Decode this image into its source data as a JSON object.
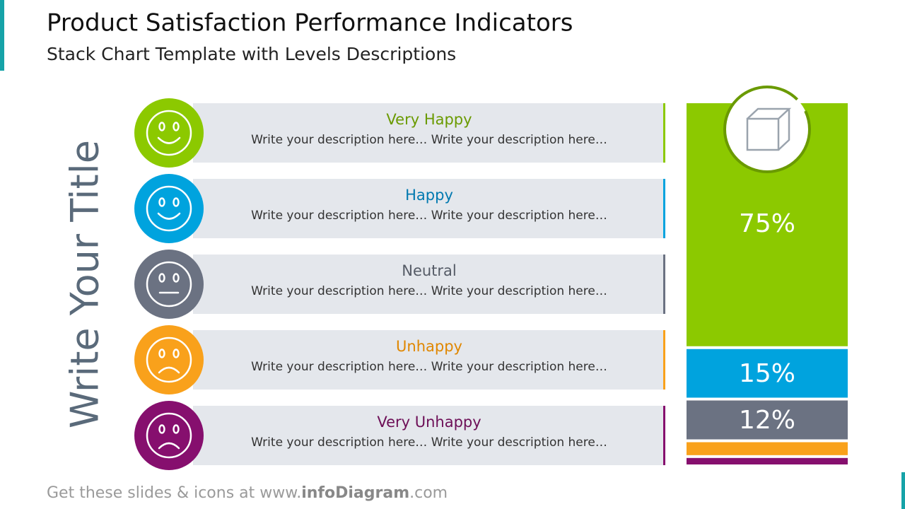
{
  "header": {
    "title": "Product Satisfaction Performance Indicators",
    "subtitle": "Stack Chart Template with Levels Descriptions"
  },
  "side_title": "Write Your Title",
  "descriptions": [
    "Write your description here… Write your description here…",
    "Write your description here… Write your description here…",
    "Write your description here… Write your description here…",
    "Write your description here… Write your description here…",
    "Write your description here… Write your description here…"
  ],
  "footer": {
    "prefix": "Get these slides & icons at www.",
    "brand": "infoDiagram",
    "suffix": ".com"
  },
  "chart_data": {
    "type": "stacked_bar",
    "categories": [
      "Very Happy",
      "Happy",
      "Neutral",
      "Unhappy",
      "Very Unhappy"
    ],
    "values": [
      75,
      15,
      12,
      4,
      2
    ],
    "value_labels": [
      "75%",
      "15%",
      "12%",
      null,
      null
    ],
    "colors": [
      "#8cc900",
      "#00a3de",
      "#6b7282",
      "#f9a11b",
      "#860f6e"
    ],
    "label_colors": [
      "#6a9a00",
      "#0079b0",
      "#555b66",
      "#e08700",
      "#6d0f57"
    ]
  }
}
